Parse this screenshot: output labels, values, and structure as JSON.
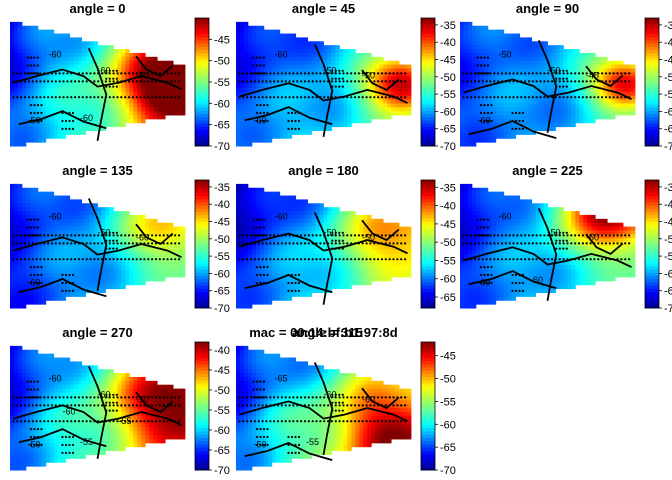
{
  "chart_data": [
    {
      "type": "heatmap",
      "title": "angle = 0",
      "colorbar": {
        "ticks": [
          -45,
          -50,
          -55,
          -60,
          -65,
          -70
        ],
        "range": [
          -70,
          -40
        ]
      },
      "contour_labels": [
        "-60",
        "-60",
        "-50",
        "-50",
        "-60"
      ],
      "field": {
        "corners": [
          -68,
          -50,
          -62,
          -52
        ],
        "hot": {
          "u": 0.92,
          "v": 0.5,
          "amp": 18,
          "r": 0.22
        }
      }
    },
    {
      "type": "heatmap",
      "title": "angle = 45",
      "colorbar": {
        "ticks": [
          -35,
          -40,
          -45,
          -50,
          -55,
          -60,
          -65,
          -70
        ],
        "range": [
          -70,
          -33
        ]
      },
      "contour_labels": [
        "-60",
        "-50",
        "-50",
        "-60"
      ],
      "field": {
        "corners": [
          -68,
          -55,
          -60,
          -55
        ],
        "hot": {
          "u": 0.95,
          "v": 0.5,
          "amp": 22,
          "r": 0.15
        }
      }
    },
    {
      "type": "heatmap",
      "title": "angle = 90",
      "colorbar": {
        "ticks": [
          -35,
          -40,
          -45,
          -50,
          -55,
          -60,
          -65,
          -70
        ],
        "range": [
          -70,
          -33
        ]
      },
      "contour_labels": [
        "-50",
        "-50",
        "-45",
        "-60"
      ],
      "field": {
        "corners": [
          -65,
          -55,
          -62,
          -58
        ],
        "hot": {
          "u": 0.95,
          "v": 0.5,
          "amp": 22,
          "r": 0.14
        }
      }
    },
    {
      "type": "heatmap",
      "title": "angle = 135",
      "colorbar": {
        "ticks": [
          -35,
          -40,
          -45,
          -50,
          -55,
          -60,
          -65,
          -70
        ],
        "range": [
          -70,
          -33
        ]
      },
      "contour_labels": [
        "-60",
        "-50",
        "-60",
        "-60"
      ],
      "field": {
        "corners": [
          -66,
          -55,
          -64,
          -55
        ],
        "hot": {
          "u": 0.9,
          "v": 0.35,
          "amp": 12,
          "r": 0.2
        }
      }
    },
    {
      "type": "heatmap",
      "title": "angle = 180",
      "colorbar": {
        "ticks": [
          -35,
          -40,
          -45,
          -50,
          -55,
          -60,
          -65
        ],
        "range": [
          -68,
          -33
        ]
      },
      "contour_labels": [
        "-60",
        "-50",
        "-50"
      ],
      "field": {
        "corners": [
          -68,
          -52,
          -60,
          -52
        ],
        "hot": {
          "u": 0.9,
          "v": 0.4,
          "amp": 12,
          "r": 0.25
        }
      }
    },
    {
      "type": "heatmap",
      "title": "angle = 225",
      "colorbar": {
        "ticks": [
          -35,
          -40,
          -45,
          -50,
          -55,
          -60,
          -65,
          -70
        ],
        "range": [
          -70,
          -33
        ]
      },
      "contour_labels": [
        "-60",
        "-50",
        "-50",
        "-60",
        "-60"
      ],
      "field": {
        "corners": [
          -68,
          -50,
          -62,
          -56
        ],
        "hot": {
          "u": 0.85,
          "v": 0.25,
          "amp": 20,
          "r": 0.2
        }
      }
    },
    {
      "type": "heatmap",
      "title": "angle = 270",
      "colorbar": {
        "ticks": [
          -40,
          -45,
          -50,
          -55,
          -60,
          -65,
          -70
        ],
        "range": [
          -70,
          -38
        ]
      },
      "contour_labels": [
        "-60",
        "-60",
        "-50",
        "-50",
        "-55",
        "-55",
        "-60"
      ],
      "field": {
        "corners": [
          -68,
          -50,
          -62,
          -48
        ],
        "hot": {
          "u": 0.92,
          "v": 0.45,
          "amp": 14,
          "r": 0.25
        }
      }
    },
    {
      "type": "heatmap",
      "title": "mac = 00:14:bf:b1:97:8d",
      "overlay_title": "angle = 315",
      "colorbar": {
        "ticks": [
          -45,
          -50,
          -55,
          -60,
          -65,
          -70
        ],
        "range": [
          -70,
          -42
        ]
      },
      "contour_labels": [
        "-65",
        "-60",
        "-60",
        "-50",
        "-55"
      ],
      "field": {
        "corners": [
          -68,
          -55,
          -62,
          -50
        ],
        "hot": {
          "u": 0.85,
          "v": 0.65,
          "amp": 10,
          "r": 0.25
        }
      }
    }
  ]
}
